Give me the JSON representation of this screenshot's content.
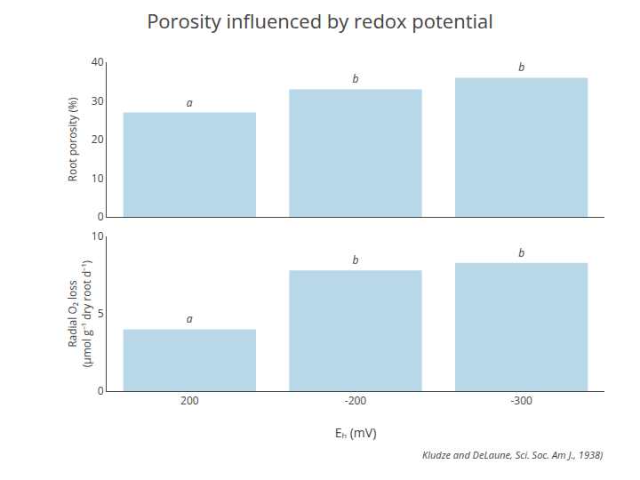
{
  "chart_data": [
    {
      "type": "bar",
      "title": "Porosity influenced by redox potential",
      "categories": [
        "200",
        "-200",
        "-300"
      ],
      "values": [
        27,
        33,
        36
      ],
      "value_labels": [
        "a",
        "b",
        "b"
      ],
      "data_labels": true,
      "color": "#b8d8e8",
      "ylabel": "Root porosity (%)",
      "ylim": [
        0,
        40
      ],
      "yticks": [
        0,
        10,
        20,
        30,
        40
      ],
      "tick_labels": "y",
      "grid": false
    },
    {
      "type": "bar",
      "categories": [
        "200",
        "-200",
        "-300"
      ],
      "values": [
        4.0,
        7.8,
        8.3
      ],
      "value_labels": [
        "a",
        "b",
        "b"
      ],
      "data_labels": true,
      "color": "#b8d8e8",
      "xlabel": "Eₕ (mV)",
      "ylabel": "Radial O₂ loss\n(μmol g⁻¹ dry root d⁻¹)",
      "ylim": [
        0,
        10
      ],
      "yticks": [
        0,
        5,
        10
      ],
      "grid": false,
      "annotations": [
        "Kludze and DeLaune, Sci. Soc. Am J., 1938)"
      ]
    }
  ]
}
